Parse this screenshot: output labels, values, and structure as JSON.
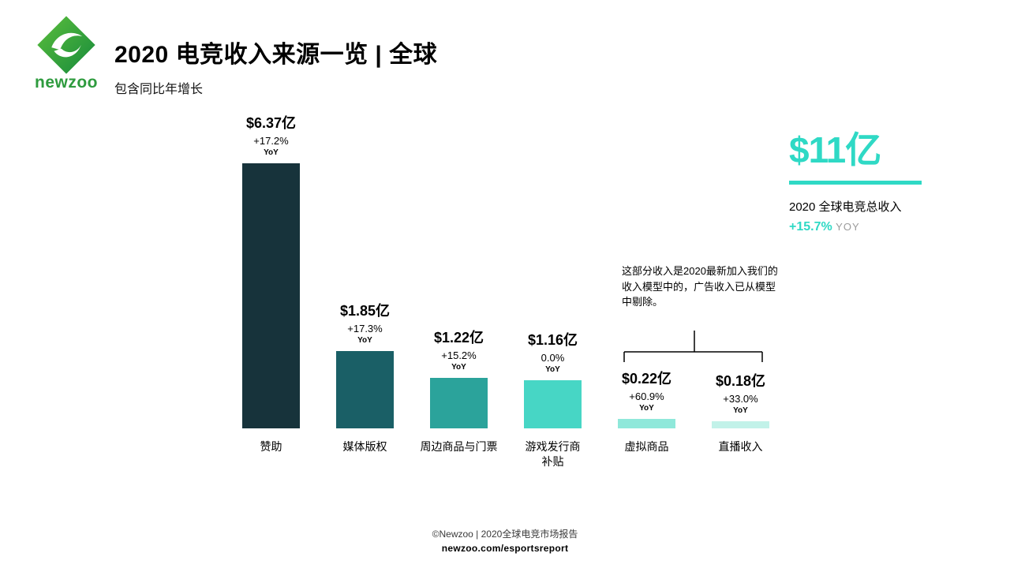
{
  "brand": {
    "name": "newzoo"
  },
  "header": {
    "title": "2020 电竞收入来源一览 | 全球",
    "subtitle": "包含同比年增长"
  },
  "chart_data": {
    "type": "bar",
    "title": "2020 电竞收入来源一览 | 全球",
    "subtitle": "包含同比年增长",
    "categories": [
      "赞助",
      "媒体版权",
      "周边商品与门票",
      "游戏发行商\n补贴",
      "虚拟商品",
      "直播收入"
    ],
    "values": [
      6.37,
      1.85,
      1.22,
      1.16,
      0.22,
      0.18
    ],
    "value_labels": [
      "$6.37亿",
      "$1.85亿",
      "$1.22亿",
      "$1.16亿",
      "$0.22亿",
      "$0.18亿"
    ],
    "yoy_labels": [
      "+17.2%",
      "+17.3%",
      "+15.2%",
      "0.0%",
      "+60.9%",
      "+33.0%"
    ],
    "yoy_suffix": "YoY",
    "bar_colors": [
      "#17333b",
      "#1a5f66",
      "#2ba39b",
      "#47d6c5",
      "#8fe8da",
      "#c2f2e9"
    ],
    "ylim": [
      0,
      6.37
    ],
    "unit": "亿 USD",
    "grid": false,
    "legend": false
  },
  "annotation": {
    "text": "这部分收入是2020最新加入我们的收入模型中的，广告收入已从模型中剔除。"
  },
  "summary": {
    "total": "$11亿",
    "caption": "2020 全球电竞总收入",
    "yoy_value": "+15.7%",
    "yoy_suffix": "YOY",
    "accent_color": "#2fd9c5"
  },
  "footer": {
    "credit": "©Newzoo | 2020全球电竞市场报告",
    "link": "newzoo.com/esportsreport"
  }
}
